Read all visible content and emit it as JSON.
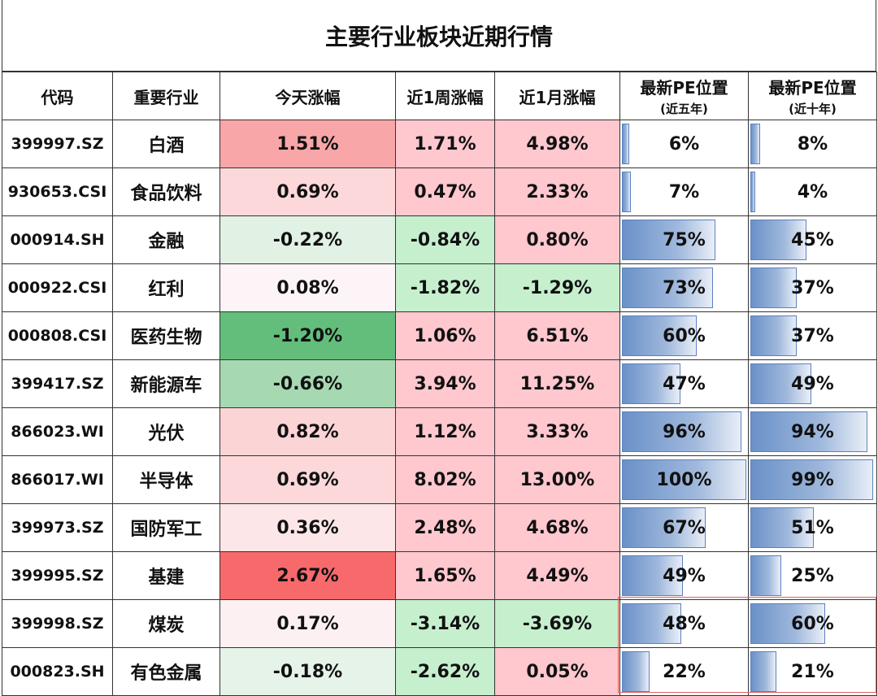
{
  "title": "主要行业板块近期行情",
  "headers": {
    "code": "代码",
    "industry": "重要行业",
    "today": "今天涨幅",
    "week": "近1周涨幅",
    "month": "近1月涨幅",
    "pe5": "最新PE位置",
    "pe5_sub": "(近五年)",
    "pe10": "最新PE位置",
    "pe10_sub": "(近十年)"
  },
  "colors": {
    "strong_red": "#f8696b",
    "light_red": "#ffc7ce",
    "strong_green": "#63be7b",
    "light_green": "#c6efce",
    "red_text": "#b0001a",
    "green_text": "#0f7a0f",
    "pe_bar": "#6a91c8"
  },
  "rows": [
    {
      "code": "399997.SZ",
      "industry": "白酒",
      "today": "1.51%",
      "week": "1.71%",
      "month": "4.98%",
      "pe5": "6%",
      "pe10": "8%",
      "today_bg": "#f8a6a7",
      "week_bg": "#ffc7ce",
      "month_bg": "#ffc7ce",
      "week_tone": "red",
      "month_tone": "red",
      "pe5_level": 0.06,
      "pe10_level": 0.08
    },
    {
      "code": "930653.CSI",
      "industry": "食品饮料",
      "today": "0.69%",
      "week": "0.47%",
      "month": "2.33%",
      "pe5": "7%",
      "pe10": "4%",
      "today_bg": "#fcd8da",
      "week_bg": "#ffc7ce",
      "month_bg": "#ffc7ce",
      "week_tone": "red",
      "month_tone": "red",
      "pe5_level": 0.07,
      "pe10_level": 0.04
    },
    {
      "code": "000914.SH",
      "industry": "金融",
      "today": "-0.22%",
      "week": "-0.84%",
      "month": "0.80%",
      "pe5": "75%",
      "pe10": "45%",
      "today_bg": "#e1f1e4",
      "week_bg": "#c6efce",
      "month_bg": "#ffc7ce",
      "week_tone": "green",
      "month_tone": "red",
      "pe5_level": 0.75,
      "pe10_level": 0.45
    },
    {
      "code": "000922.CSI",
      "industry": "红利",
      "today": "0.08%",
      "week": "-1.82%",
      "month": "-1.29%",
      "pe5": "73%",
      "pe10": "37%",
      "today_bg": "#fcf4f6",
      "week_bg": "#c6efce",
      "month_bg": "#c6efce",
      "week_tone": "green",
      "month_tone": "green",
      "pe5_level": 0.73,
      "pe10_level": 0.37
    },
    {
      "code": "000808.CSI",
      "industry": "医药生物",
      "today": "-1.20%",
      "week": "1.06%",
      "month": "6.51%",
      "pe5": "60%",
      "pe10": "37%",
      "today_bg": "#63be7b",
      "week_bg": "#ffc7ce",
      "month_bg": "#ffc7ce",
      "week_tone": "red",
      "month_tone": "red",
      "pe5_level": 0.6,
      "pe10_level": 0.37
    },
    {
      "code": "399417.SZ",
      "industry": "新能源车",
      "today": "-0.66%",
      "week": "3.94%",
      "month": "11.25%",
      "pe5": "47%",
      "pe10": "49%",
      "today_bg": "#a6d9b2",
      "week_bg": "#ffc7ce",
      "month_bg": "#ffc7ce",
      "week_tone": "red",
      "month_tone": "red",
      "pe5_level": 0.47,
      "pe10_level": 0.49
    },
    {
      "code": "866023.WI",
      "industry": "光伏",
      "today": "0.82%",
      "week": "1.12%",
      "month": "3.33%",
      "pe5": "96%",
      "pe10": "94%",
      "today_bg": "#fbd4d6",
      "week_bg": "#ffc7ce",
      "month_bg": "#ffc7ce",
      "week_tone": "red",
      "month_tone": "red",
      "pe5_level": 0.96,
      "pe10_level": 0.94
    },
    {
      "code": "866017.WI",
      "industry": "半导体",
      "today": "0.69%",
      "week": "8.02%",
      "month": "13.00%",
      "pe5": "100%",
      "pe10": "99%",
      "today_bg": "#fcd8da",
      "week_bg": "#ffc7ce",
      "month_bg": "#ffc7ce",
      "week_tone": "red",
      "month_tone": "red",
      "pe5_level": 1.0,
      "pe10_level": 0.99
    },
    {
      "code": "399973.SZ",
      "industry": "国防军工",
      "today": "0.36%",
      "week": "2.48%",
      "month": "4.68%",
      "pe5": "67%",
      "pe10": "51%",
      "today_bg": "#fce6e8",
      "week_bg": "#ffc7ce",
      "month_bg": "#ffc7ce",
      "week_tone": "red",
      "month_tone": "red",
      "pe5_level": 0.67,
      "pe10_level": 0.51
    },
    {
      "code": "399995.SZ",
      "industry": "基建",
      "today": "2.67%",
      "week": "1.65%",
      "month": "4.49%",
      "pe5": "49%",
      "pe10": "25%",
      "today_bg": "#f8696b",
      "week_bg": "#ffc7ce",
      "month_bg": "#ffc7ce",
      "week_tone": "red",
      "month_tone": "red",
      "pe5_level": 0.49,
      "pe10_level": 0.25
    },
    {
      "code": "399998.SZ",
      "industry": "煤炭",
      "today": "0.17%",
      "week": "-3.14%",
      "month": "-3.69%",
      "pe5": "48%",
      "pe10": "60%",
      "today_bg": "#fcf0f2",
      "week_bg": "#c6efce",
      "month_bg": "#c6efce",
      "week_tone": "green",
      "month_tone": "green",
      "pe5_level": 0.48,
      "pe10_level": 0.6
    },
    {
      "code": "000823.SH",
      "industry": "有色金属",
      "today": "-0.18%",
      "week": "-2.62%",
      "month": "0.05%",
      "pe5": "22%",
      "pe10": "21%",
      "today_bg": "#e5f3e8",
      "week_bg": "#c6efce",
      "month_bg": "#ffc7ce",
      "week_tone": "green",
      "month_tone": "red",
      "pe5_level": 0.22,
      "pe10_level": 0.21
    }
  ]
}
